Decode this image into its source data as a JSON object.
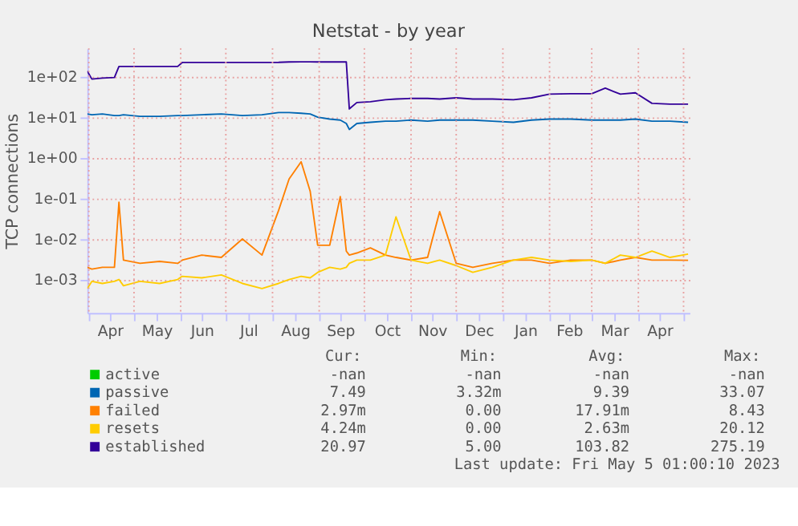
{
  "chart_data": {
    "type": "line",
    "title": "Netstat - by year",
    "ylabel": "TCP connections",
    "log": "y",
    "grid": true,
    "legend": "bottom",
    "line_style": "solid",
    "marker": "none",
    "ylim": [
      0.00015,
      500
    ],
    "yticks": [
      {
        "value": 0.001,
        "label": "1e-03"
      },
      {
        "value": 0.01,
        "label": "1e-02"
      },
      {
        "value": 0.1,
        "label": "1e-01"
      },
      {
        "value": 1,
        "label": "1e+00"
      },
      {
        "value": 10,
        "label": "1e+01"
      },
      {
        "value": 100,
        "label": "1e+02"
      }
    ],
    "xlim": [
      "2022-03-31",
      "2023-05-05"
    ],
    "xticks": [
      {
        "value": "2022-04-01",
        "label": null
      },
      {
        "value": "2022-04-15",
        "label": "Apr"
      },
      {
        "value": "2022-05-01",
        "label": null
      },
      {
        "value": "2022-05-16",
        "label": "May"
      },
      {
        "value": "2022-06-01",
        "label": null
      },
      {
        "value": "2022-06-15",
        "label": "Jun"
      },
      {
        "value": "2022-07-01",
        "label": null
      },
      {
        "value": "2022-07-16",
        "label": "Jul"
      },
      {
        "value": "2022-08-01",
        "label": null
      },
      {
        "value": "2022-08-16",
        "label": "Aug"
      },
      {
        "value": "2022-09-01",
        "label": null
      },
      {
        "value": "2022-09-15",
        "label": "Sep"
      },
      {
        "value": "2022-10-01",
        "label": null
      },
      {
        "value": "2022-10-16",
        "label": "Oct"
      },
      {
        "value": "2022-11-01",
        "label": null
      },
      {
        "value": "2022-11-15",
        "label": "Nov"
      },
      {
        "value": "2022-12-01",
        "label": null
      },
      {
        "value": "2022-12-16",
        "label": "Dec"
      },
      {
        "value": "2023-01-01",
        "label": null
      },
      {
        "value": "2023-01-16",
        "label": "Jan"
      },
      {
        "value": "2023-02-01",
        "label": null
      },
      {
        "value": "2023-02-14",
        "label": "Feb"
      },
      {
        "value": "2023-03-01",
        "label": null
      },
      {
        "value": "2023-03-16",
        "label": "Mar"
      },
      {
        "value": "2023-04-01",
        "label": null
      },
      {
        "value": "2023-04-15",
        "label": "Apr"
      },
      {
        "value": "2023-05-01",
        "label": null
      }
    ],
    "x": [
      "2022-03-31",
      "2022-04-03",
      "2022-04-10",
      "2022-04-18",
      "2022-04-21",
      "2022-04-24",
      "2022-05-05",
      "2022-05-18",
      "2022-05-30",
      "2022-06-02",
      "2022-06-15",
      "2022-06-28",
      "2022-07-12",
      "2022-07-25",
      "2022-08-05",
      "2022-08-12",
      "2022-08-20",
      "2022-08-26",
      "2022-08-31",
      "2022-09-08",
      "2022-09-15",
      "2022-09-19",
      "2022-09-21",
      "2022-09-26",
      "2022-10-05",
      "2022-10-15",
      "2022-10-22",
      "2022-11-01",
      "2022-11-12",
      "2022-11-20",
      "2022-12-01",
      "2022-12-12",
      "2022-12-25",
      "2023-01-08",
      "2023-01-20",
      "2023-02-01",
      "2023-02-15",
      "2023-03-01",
      "2023-03-10",
      "2023-03-20",
      "2023-03-30",
      "2023-04-10",
      "2023-04-22",
      "2023-05-04"
    ],
    "series": [
      {
        "name": "active",
        "color": "#00cc00",
        "values": [
          null,
          null,
          null,
          null,
          null,
          null,
          null,
          null,
          null,
          null,
          null,
          null,
          null,
          null,
          null,
          null,
          null,
          null,
          null,
          null,
          null,
          null,
          null,
          null,
          null,
          null,
          null,
          null,
          null,
          null,
          null,
          null,
          null,
          null,
          null,
          null,
          null,
          null,
          null,
          null,
          null,
          null,
          null,
          null
        ]
      },
      {
        "name": "passive",
        "color": "#0066b3",
        "values": [
          12,
          11.5,
          12,
          11,
          11,
          11.5,
          10.5,
          10.5,
          11,
          11,
          11.5,
          12,
          11,
          11.5,
          13,
          13,
          12.5,
          12,
          10,
          9,
          8.5,
          7,
          5,
          7,
          7.5,
          8,
          8,
          8.5,
          8,
          8.5,
          8.5,
          8.5,
          8,
          7.5,
          8.5,
          9,
          9,
          8.5,
          8.5,
          8.5,
          9,
          8,
          8,
          7.49
        ]
      },
      {
        "name": "failed",
        "color": "#ff8000",
        "values": [
          0.002,
          0.0018,
          0.002,
          0.002,
          0.08,
          0.003,
          0.0025,
          0.0028,
          0.0025,
          0.003,
          0.004,
          0.0035,
          0.01,
          0.004,
          0.05,
          0.3,
          0.8,
          0.15,
          0.007,
          0.007,
          0.11,
          0.005,
          0.004,
          0.0045,
          0.006,
          0.004,
          0.0035,
          0.003,
          0.0035,
          0.047,
          0.0025,
          0.002,
          0.0025,
          0.003,
          0.003,
          0.0025,
          0.003,
          0.003,
          0.0025,
          0.003,
          0.0035,
          0.003,
          0.003,
          0.00297
        ]
      },
      {
        "name": "resets",
        "color": "#ffcc00",
        "values": [
          0.0006,
          0.0009,
          0.0008,
          0.0009,
          0.001,
          0.0007,
          0.0009,
          0.0008,
          0.001,
          0.0012,
          0.0011,
          0.0013,
          0.0008,
          0.0006,
          0.0008,
          0.001,
          0.0012,
          0.0011,
          0.0015,
          0.002,
          0.0018,
          0.002,
          0.0025,
          0.003,
          0.003,
          0.004,
          0.035,
          0.003,
          0.0025,
          0.003,
          0.0022,
          0.0015,
          0.002,
          0.003,
          0.0035,
          0.003,
          0.0028,
          0.003,
          0.0025,
          0.004,
          0.0035,
          0.005,
          0.0035,
          0.00424
        ]
      },
      {
        "name": "established",
        "color": "#330099",
        "values": [
          137,
          87,
          92,
          95,
          178,
          178,
          178,
          178,
          178,
          223,
          223,
          223,
          223,
          223,
          225,
          230,
          232,
          232,
          230,
          230,
          230,
          230,
          16,
          23,
          24,
          27,
          28,
          29,
          29,
          28,
          30,
          28,
          28,
          27,
          30,
          37,
          38,
          38,
          52,
          37,
          40,
          22,
          21,
          20.97
        ]
      }
    ],
    "annotations": [
      "Cur:",
      "Min:",
      "Avg:",
      "Max:",
      "-nan",
      "-nan",
      "-nan",
      "-nan",
      "7.49",
      "3.32m",
      "9.39",
      "33.07",
      "2.97m",
      "0.00",
      "17.91m",
      "8.43",
      "4.24m",
      "0.00",
      "2.63m",
      "20.12",
      "20.97",
      "5.00",
      "103.82",
      "275.19",
      "Last update: Fri May  5 01:00:10 2023"
    ]
  }
}
